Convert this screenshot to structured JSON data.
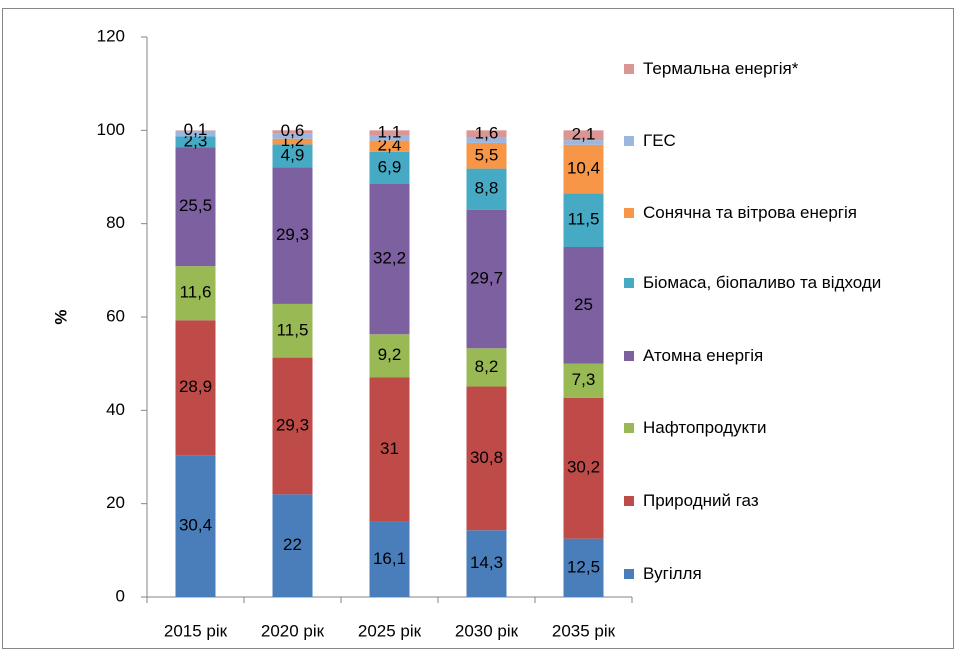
{
  "chart_data": {
    "type": "stacked_bar",
    "categories": [
      "2015 рік",
      "2020 рік",
      "2025 рік",
      "2030 рік",
      "2035 рік"
    ],
    "y_label": "%",
    "ylim": [
      0,
      120
    ],
    "yticks": [
      0,
      20,
      40,
      60,
      80,
      100,
      120
    ],
    "legend": "right",
    "series": [
      {
        "name": "Вугілля",
        "color": "#4a7ebb",
        "values": [
          30.4,
          22,
          16.1,
          14.3,
          12.5
        ],
        "value_labels": [
          "30,4",
          "22",
          "16,1",
          "14,3",
          "12,5"
        ]
      },
      {
        "name": "Природний газ",
        "color": "#be4b48",
        "values": [
          28.9,
          29.3,
          31,
          30.8,
          30.2
        ],
        "value_labels": [
          "28,9",
          "29,3",
          "31",
          "30,8",
          "30,2"
        ]
      },
      {
        "name": "Нафтопродукти",
        "color": "#98b954",
        "values": [
          11.6,
          11.5,
          9.2,
          8.2,
          7.3
        ],
        "value_labels": [
          "11,6",
          "11,5",
          "9,2",
          "8,2",
          "7,3"
        ]
      },
      {
        "name": "Атомна енергія",
        "color": "#7d60a0",
        "values": [
          25.5,
          29.3,
          32.2,
          29.7,
          25
        ],
        "value_labels": [
          "25,5",
          "29,3",
          "32,2",
          "29,7",
          "25"
        ]
      },
      {
        "name": "Біомаса, біопаливо та відходи",
        "color": "#46aac5",
        "values": [
          2.3,
          4.9,
          6.9,
          8.8,
          11.5
        ],
        "value_labels": [
          "2,3",
          "4,9",
          "6,9",
          "8,8",
          "11,5"
        ]
      },
      {
        "name": "Сонячна та вітрова енергія",
        "color": "#f79646",
        "values": [
          0,
          1.2,
          2.4,
          5.5,
          10.4
        ],
        "value_labels": [
          null,
          "1,2",
          "2,4",
          "5,5",
          "10,4"
        ]
      },
      {
        "name": "ГЕС",
        "color": "#9bb7e0",
        "values": [
          1.2,
          1.2,
          1.1,
          1.1,
          1.0
        ]
      },
      {
        "name": "Термальна енергія*",
        "color": "#d99694",
        "values": [
          0.1,
          0.6,
          1.1,
          1.6,
          2.1
        ],
        "value_labels": [
          "0,1",
          "0,6",
          "1,1",
          "1,6",
          "2,1"
        ]
      }
    ]
  }
}
